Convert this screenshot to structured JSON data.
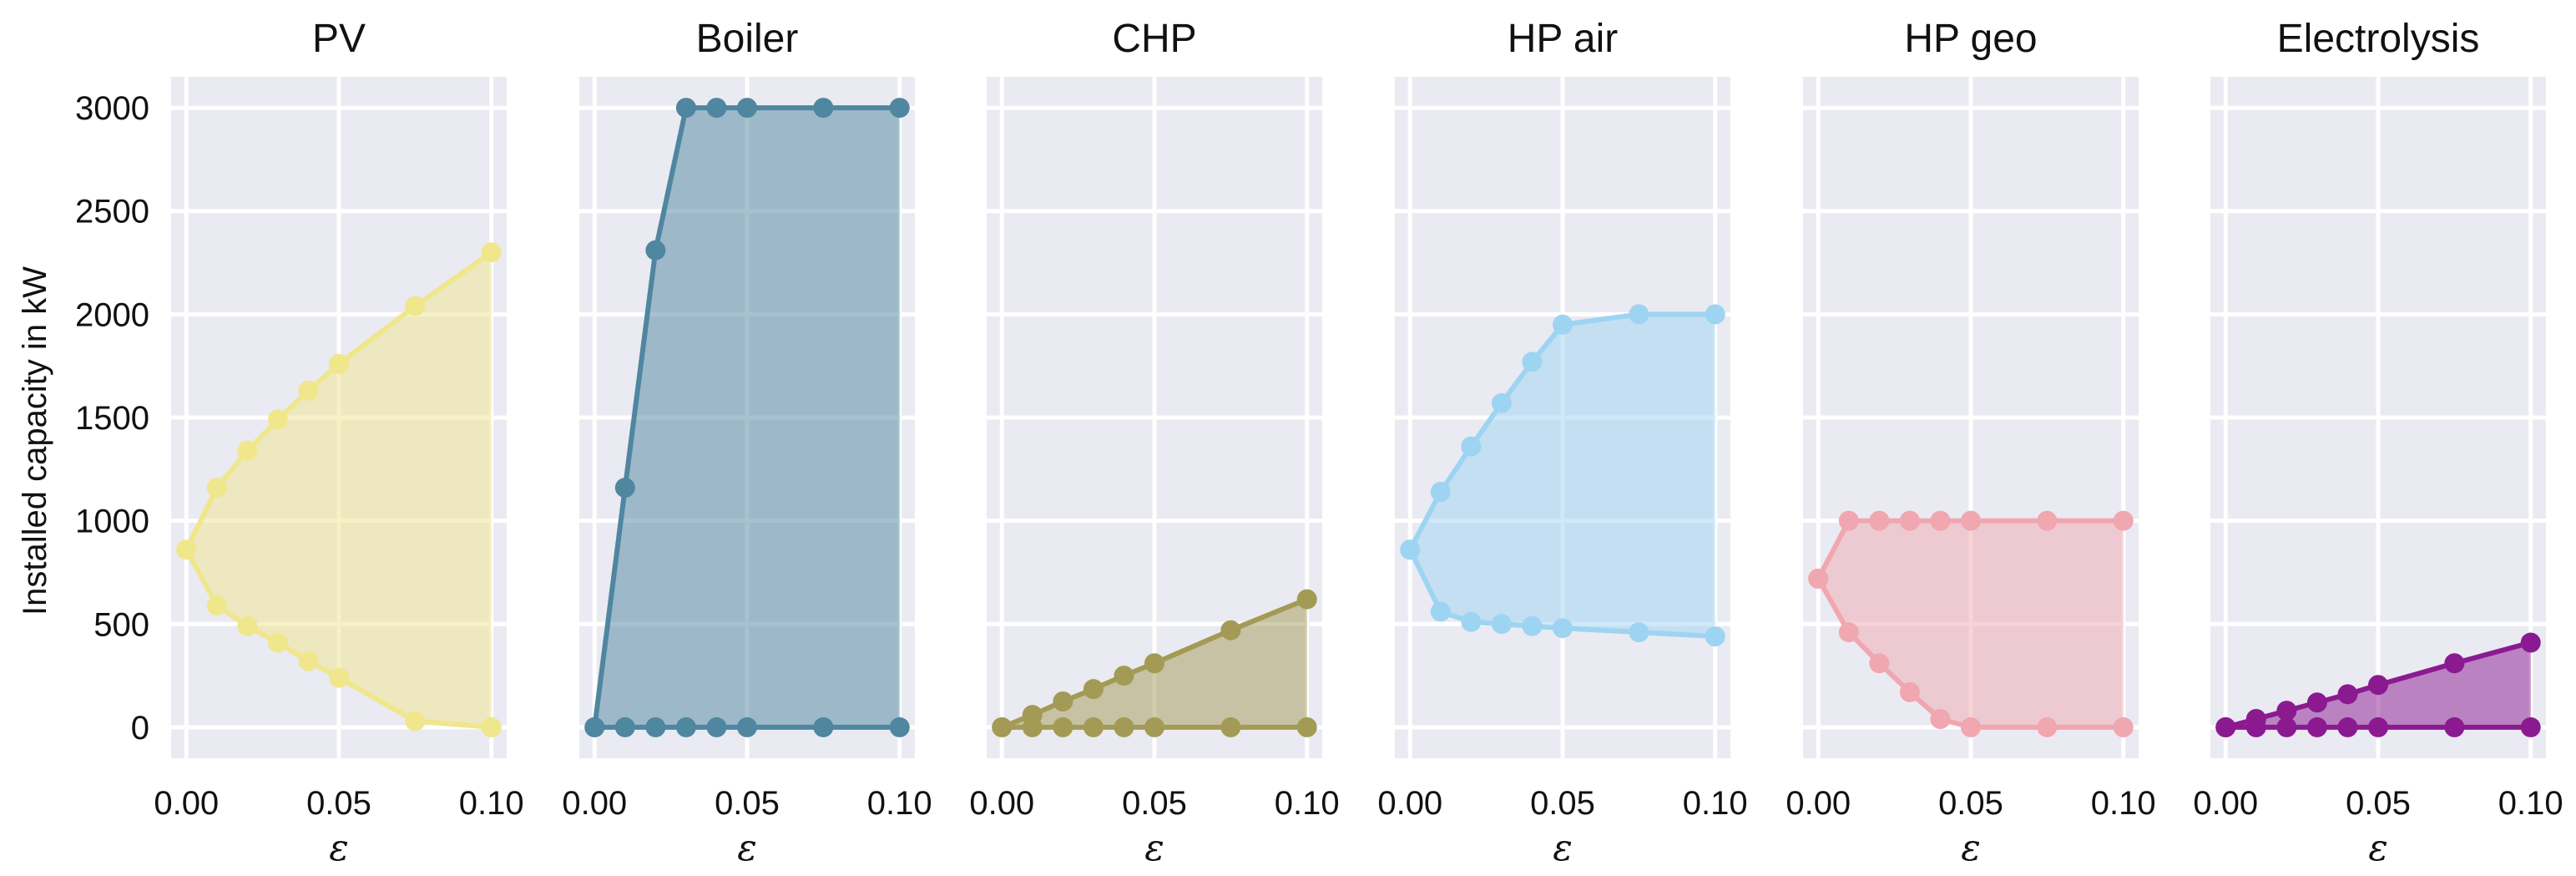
{
  "chart_data": [
    {
      "type": "area",
      "title": "PV",
      "xlabel": "ε",
      "ylabel": "Installed capacity in kW",
      "xlim": [
        -0.005,
        0.105
      ],
      "ylim": [
        -150,
        3150
      ],
      "x_ticks": [
        "0.00",
        "0.05",
        "0.10"
      ],
      "y_ticks": [
        "0",
        "500",
        "1000",
        "1500",
        "2000",
        "2500",
        "3000"
      ],
      "color": "#F0E68C",
      "x": [
        0,
        0.01,
        0.02,
        0.03,
        0.04,
        0.05,
        0.075,
        0.1
      ],
      "series": [
        {
          "name": "max",
          "values": [
            860,
            1160,
            1340,
            1490,
            1630,
            1760,
            2040,
            2300
          ]
        },
        {
          "name": "min",
          "values": [
            860,
            590,
            490,
            410,
            320,
            240,
            30,
            0
          ]
        }
      ]
    },
    {
      "type": "area",
      "title": "Boiler",
      "xlabel": "ε",
      "xlim": [
        -0.005,
        0.105
      ],
      "ylim": [
        -150,
        3150
      ],
      "x_ticks": [
        "0.00",
        "0.05",
        "0.10"
      ],
      "color": "#4F86A0",
      "x": [
        0,
        0.01,
        0.02,
        0.03,
        0.04,
        0.05,
        0.075,
        0.1
      ],
      "series": [
        {
          "name": "max",
          "values": [
            0,
            1160,
            2310,
            3000,
            3000,
            3000,
            3000,
            3000
          ]
        },
        {
          "name": "min",
          "values": [
            0,
            0,
            0,
            0,
            0,
            0,
            0,
            0
          ]
        }
      ]
    },
    {
      "type": "area",
      "title": "CHP",
      "xlabel": "ε",
      "xlim": [
        -0.005,
        0.105
      ],
      "ylim": [
        -150,
        3150
      ],
      "x_ticks": [
        "0.00",
        "0.05",
        "0.10"
      ],
      "color": "#A39A55",
      "x": [
        0,
        0.01,
        0.02,
        0.03,
        0.04,
        0.05,
        0.075,
        0.1
      ],
      "series": [
        {
          "name": "max",
          "values": [
            0,
            60,
            125,
            185,
            250,
            310,
            470,
            620
          ]
        },
        {
          "name": "min",
          "values": [
            0,
            0,
            0,
            0,
            0,
            0,
            0,
            0
          ]
        }
      ]
    },
    {
      "type": "area",
      "title": "HP air",
      "xlabel": "ε",
      "xlim": [
        -0.005,
        0.105
      ],
      "ylim": [
        -150,
        3150
      ],
      "x_ticks": [
        "0.00",
        "0.05",
        "0.10"
      ],
      "color": "#9DD4F2",
      "x": [
        0,
        0.01,
        0.02,
        0.03,
        0.04,
        0.05,
        0.075,
        0.1
      ],
      "series": [
        {
          "name": "max",
          "values": [
            860,
            1140,
            1360,
            1570,
            1770,
            1950,
            2000,
            2000
          ]
        },
        {
          "name": "min",
          "values": [
            860,
            560,
            510,
            500,
            490,
            480,
            460,
            440
          ]
        }
      ]
    },
    {
      "type": "area",
      "title": "HP geo",
      "xlabel": "ε",
      "xlim": [
        -0.005,
        0.105
      ],
      "ylim": [
        -150,
        3150
      ],
      "x_ticks": [
        "0.00",
        "0.05",
        "0.10"
      ],
      "color": "#F0A7B0",
      "x": [
        0,
        0.01,
        0.02,
        0.03,
        0.04,
        0.05,
        0.075,
        0.1
      ],
      "series": [
        {
          "name": "max",
          "values": [
            720,
            1000,
            1000,
            1000,
            1000,
            1000,
            1000,
            1000
          ]
        },
        {
          "name": "min",
          "values": [
            720,
            460,
            310,
            170,
            40,
            0,
            0,
            0
          ]
        }
      ]
    },
    {
      "type": "area",
      "title": "Electrolysis",
      "xlabel": "ε",
      "xlim": [
        -0.005,
        0.105
      ],
      "ylim": [
        -150,
        3150
      ],
      "x_ticks": [
        "0.00",
        "0.05",
        "0.10"
      ],
      "color": "#8B1A91",
      "x": [
        0,
        0.01,
        0.02,
        0.03,
        0.04,
        0.05,
        0.075,
        0.1
      ],
      "series": [
        {
          "name": "max",
          "values": [
            0,
            40,
            80,
            120,
            160,
            205,
            310,
            410
          ]
        },
        {
          "name": "min",
          "values": [
            0,
            0,
            0,
            0,
            0,
            0,
            0,
            0
          ]
        }
      ]
    }
  ]
}
